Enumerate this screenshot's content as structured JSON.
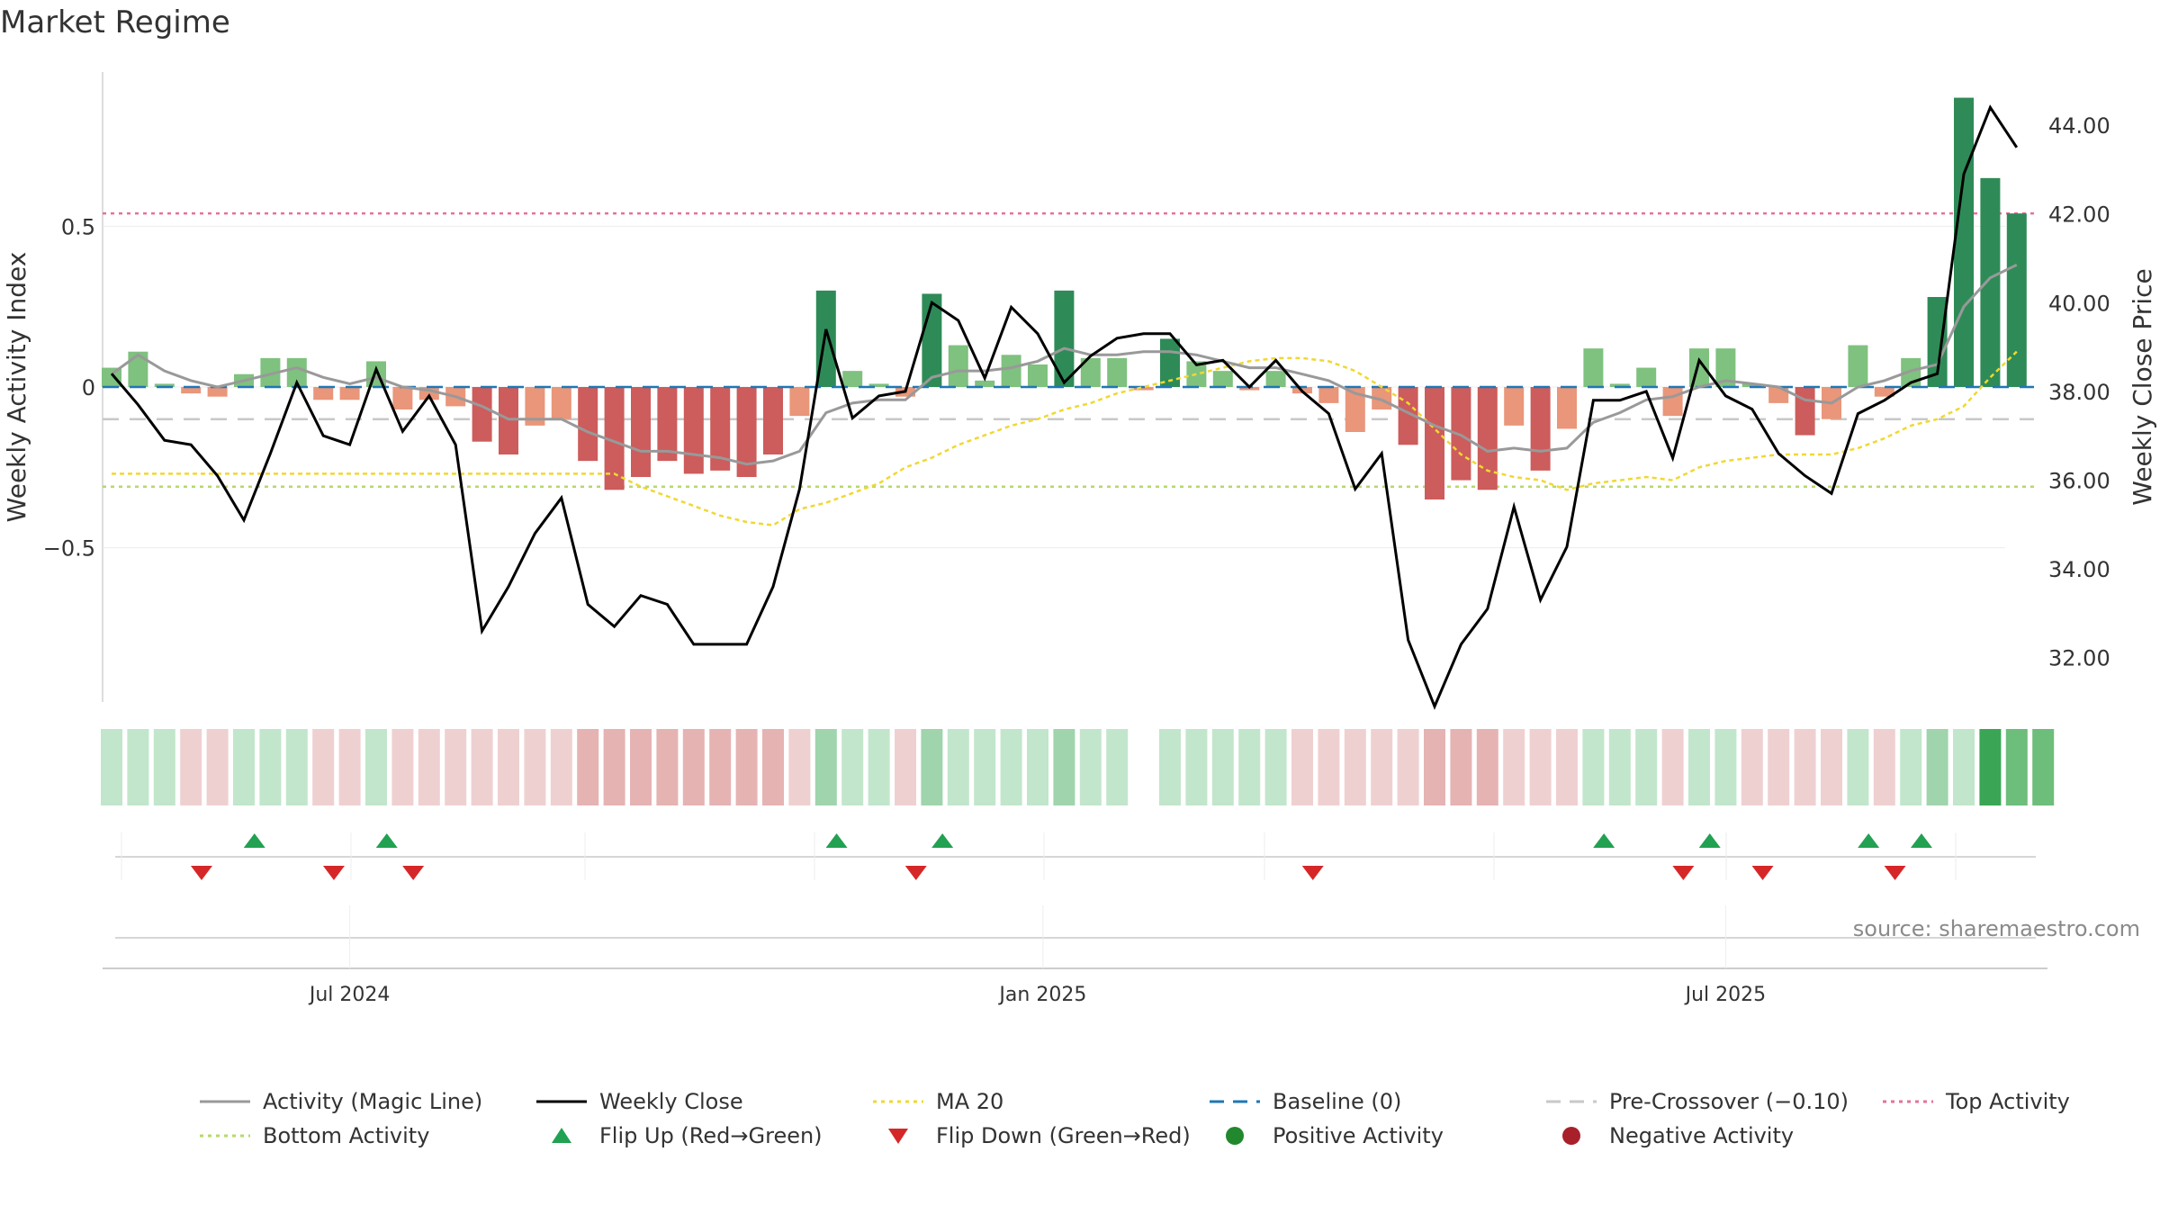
{
  "chart_data": {
    "type": "bar",
    "title": "Market Regime",
    "ylabel_left": "Weekly Activity Index",
    "ylabel_right": "Weekly Close Price",
    "source": "source: sharemaestro.com",
    "left_ylim": [
      -0.98,
      0.98
    ],
    "left_ticks": [
      {
        "v": 0.5,
        "label": "0.5"
      },
      {
        "v": 0,
        "label": "0"
      },
      {
        "v": -0.5,
        "label": "−0.5"
      }
    ],
    "right_ylim": [
      31.0,
      45.2
    ],
    "right_ticks": [
      {
        "v": 44,
        "label": "44.00"
      },
      {
        "v": 42,
        "label": "42.00"
      },
      {
        "v": 40,
        "label": "40.00"
      },
      {
        "v": 38,
        "label": "38.00"
      },
      {
        "v": 36,
        "label": "36.00"
      },
      {
        "v": 34,
        "label": "34.00"
      },
      {
        "v": 32,
        "label": "32.00"
      }
    ],
    "x_ticks": [
      {
        "index": 9,
        "label": "Jul 2024"
      },
      {
        "index": 35.2,
        "label": "Jan 2025"
      },
      {
        "index": 61,
        "label": "Jul 2025"
      }
    ],
    "reference_lines": {
      "baseline": 0,
      "pre_crossover": -0.1,
      "top_activity": 0.54,
      "bottom_activity": -0.31
    },
    "colors": {
      "strong_green": "#2e8b57",
      "light_green": "#7fc17f",
      "strong_red": "#cd5c5c",
      "light_red": "#e9967a",
      "weekly_close": "#000000",
      "magic_line": "#999999",
      "ma20": "#f0d832",
      "baseline": "#1f77b4",
      "pre_crossover": "#c8c8c8",
      "top_activity": "#e8709a",
      "bottom_activity": "#b5d96b",
      "flip_up": "#22a152",
      "flip_down": "#d62728",
      "positive": "#22882e",
      "negative": "#a8202a"
    },
    "series": [
      {
        "name": "Weekly Activity Index",
        "values": [
          0.06,
          0.11,
          0.01,
          -0.02,
          -0.03,
          0.04,
          0.09,
          0.09,
          -0.04,
          -0.04,
          0.08,
          -0.07,
          -0.04,
          -0.06,
          -0.17,
          -0.21,
          -0.12,
          -0.1,
          -0.23,
          -0.32,
          -0.28,
          -0.23,
          -0.27,
          -0.26,
          -0.28,
          -0.21,
          -0.09,
          0.3,
          0.05,
          0.01,
          -0.03,
          0.29,
          0.13,
          0.02,
          0.1,
          0.07,
          0.3,
          0.09,
          0.09,
          -0.01,
          0.15,
          0.08,
          0.05,
          -0.01,
          0.05,
          -0.02,
          -0.05,
          -0.14,
          -0.07,
          -0.18,
          -0.35,
          -0.29,
          -0.32,
          -0.12,
          -0.26,
          -0.13,
          0.12,
          0.01,
          0.06,
          -0.09,
          0.12,
          0.12,
          0.01,
          -0.05,
          -0.15,
          -0.1,
          0.13,
          -0.03,
          0.09,
          0.28,
          0.9,
          0.65,
          0.54
        ]
      },
      {
        "name": "Activity (Magic Line)",
        "values": [
          0.04,
          0.1,
          0.05,
          0.02,
          0.0,
          0.02,
          0.04,
          0.06,
          0.03,
          0.01,
          0.03,
          0.0,
          -0.01,
          -0.03,
          -0.06,
          -0.1,
          -0.1,
          -0.1,
          -0.14,
          -0.17,
          -0.2,
          -0.2,
          -0.21,
          -0.22,
          -0.24,
          -0.23,
          -0.2,
          -0.08,
          -0.05,
          -0.04,
          -0.04,
          0.03,
          0.05,
          0.05,
          0.06,
          0.08,
          0.12,
          0.1,
          0.1,
          0.11,
          0.11,
          0.1,
          0.08,
          0.06,
          0.06,
          0.04,
          0.02,
          -0.02,
          -0.04,
          -0.08,
          -0.12,
          -0.15,
          -0.2,
          -0.19,
          -0.2,
          -0.19,
          -0.11,
          -0.08,
          -0.04,
          -0.03,
          0.0,
          0.02,
          0.01,
          0.0,
          -0.04,
          -0.05,
          0.0,
          0.02,
          0.05,
          0.07,
          0.25,
          0.34,
          0.38
        ]
      },
      {
        "name": "Weekly Close",
        "values": [
          38.4,
          37.7,
          36.9,
          36.8,
          36.1,
          35.1,
          36.6,
          38.2,
          37.0,
          36.8,
          38.5,
          37.1,
          37.9,
          36.8,
          32.6,
          33.6,
          34.8,
          35.6,
          33.2,
          32.7,
          33.4,
          33.2,
          32.3,
          32.3,
          32.3,
          33.6,
          35.8,
          39.4,
          37.4,
          37.9,
          38.0,
          40.0,
          39.6,
          38.3,
          39.9,
          39.3,
          38.2,
          38.8,
          39.2,
          39.3,
          39.3,
          38.6,
          38.7,
          38.1,
          38.7,
          38.0,
          37.5,
          35.8,
          36.6,
          32.4,
          30.9,
          32.3,
          33.1,
          35.4,
          33.3,
          34.5,
          37.8,
          37.8,
          38.0,
          36.5,
          38.7,
          37.9,
          37.6,
          36.6,
          36.1,
          35.7,
          37.5,
          37.8,
          38.2,
          38.4,
          42.9,
          44.4,
          43.5
        ]
      },
      {
        "name": "MA 20",
        "values": [
          -0.27,
          -0.27,
          -0.27,
          -0.27,
          -0.27,
          -0.27,
          -0.27,
          -0.27,
          -0.27,
          -0.27,
          -0.27,
          -0.27,
          -0.27,
          -0.27,
          -0.27,
          -0.27,
          -0.27,
          -0.27,
          -0.27,
          -0.27,
          -0.31,
          -0.34,
          -0.37,
          -0.4,
          -0.42,
          -0.43,
          -0.38,
          -0.36,
          -0.33,
          -0.3,
          -0.25,
          -0.22,
          -0.18,
          -0.15,
          -0.12,
          -0.1,
          -0.07,
          -0.05,
          -0.02,
          0.0,
          0.02,
          0.04,
          0.06,
          0.08,
          0.09,
          0.09,
          0.08,
          0.05,
          0.0,
          -0.05,
          -0.13,
          -0.21,
          -0.26,
          -0.28,
          -0.29,
          -0.32,
          -0.3,
          -0.29,
          -0.28,
          -0.29,
          -0.25,
          -0.23,
          -0.22,
          -0.21,
          -0.21,
          -0.21,
          -0.19,
          -0.16,
          -0.12,
          -0.1,
          -0.06,
          0.03,
          0.11
        ]
      }
    ],
    "regime_strip": [
      {
        "state": "pos",
        "level": 1
      },
      {
        "state": "pos",
        "level": 1
      },
      {
        "state": "pos",
        "level": 1
      },
      {
        "state": "neg",
        "level": 1
      },
      {
        "state": "neg",
        "level": 1
      },
      {
        "state": "pos",
        "level": 1
      },
      {
        "state": "pos",
        "level": 1
      },
      {
        "state": "pos",
        "level": 1
      },
      {
        "state": "neg",
        "level": 1
      },
      {
        "state": "neg",
        "level": 1
      },
      {
        "state": "pos",
        "level": 1
      },
      {
        "state": "neg",
        "level": 1
      },
      {
        "state": "neg",
        "level": 1
      },
      {
        "state": "neg",
        "level": 1
      },
      {
        "state": "neg",
        "level": 1
      },
      {
        "state": "neg",
        "level": 1
      },
      {
        "state": "neg",
        "level": 1
      },
      {
        "state": "neg",
        "level": 1
      },
      {
        "state": "neg",
        "level": 2
      },
      {
        "state": "neg",
        "level": 2
      },
      {
        "state": "neg",
        "level": 2
      },
      {
        "state": "neg",
        "level": 2
      },
      {
        "state": "neg",
        "level": 2
      },
      {
        "state": "neg",
        "level": 2
      },
      {
        "state": "neg",
        "level": 2
      },
      {
        "state": "neg",
        "level": 2
      },
      {
        "state": "neg",
        "level": 1
      },
      {
        "state": "pos",
        "level": 2
      },
      {
        "state": "pos",
        "level": 1
      },
      {
        "state": "pos",
        "level": 1
      },
      {
        "state": "neg",
        "level": 1
      },
      {
        "state": "pos",
        "level": 2
      },
      {
        "state": "pos",
        "level": 1
      },
      {
        "state": "pos",
        "level": 1
      },
      {
        "state": "pos",
        "level": 1
      },
      {
        "state": "pos",
        "level": 1
      },
      {
        "state": "pos",
        "level": 2
      },
      {
        "state": "pos",
        "level": 1
      },
      {
        "state": "pos",
        "level": 1
      },
      {
        "state": "none",
        "level": 0
      },
      {
        "state": "pos",
        "level": 1
      },
      {
        "state": "pos",
        "level": 1
      },
      {
        "state": "pos",
        "level": 1
      },
      {
        "state": "pos",
        "level": 1
      },
      {
        "state": "pos",
        "level": 1
      },
      {
        "state": "neg",
        "level": 1
      },
      {
        "state": "neg",
        "level": 1
      },
      {
        "state": "neg",
        "level": 1
      },
      {
        "state": "neg",
        "level": 1
      },
      {
        "state": "neg",
        "level": 1
      },
      {
        "state": "neg",
        "level": 2
      },
      {
        "state": "neg",
        "level": 2
      },
      {
        "state": "neg",
        "level": 2
      },
      {
        "state": "neg",
        "level": 1
      },
      {
        "state": "neg",
        "level": 1
      },
      {
        "state": "neg",
        "level": 1
      },
      {
        "state": "pos",
        "level": 1
      },
      {
        "state": "pos",
        "level": 1
      },
      {
        "state": "pos",
        "level": 1
      },
      {
        "state": "neg",
        "level": 1
      },
      {
        "state": "pos",
        "level": 1
      },
      {
        "state": "pos",
        "level": 1
      },
      {
        "state": "neg",
        "level": 1
      },
      {
        "state": "neg",
        "level": 1
      },
      {
        "state": "neg",
        "level": 1
      },
      {
        "state": "neg",
        "level": 1
      },
      {
        "state": "pos",
        "level": 1
      },
      {
        "state": "neg",
        "level": 1
      },
      {
        "state": "pos",
        "level": 1
      },
      {
        "state": "pos",
        "level": 2
      },
      {
        "state": "pos",
        "level": 1
      },
      {
        "state": "pos",
        "level": 4
      },
      {
        "state": "pos",
        "level": 3
      },
      {
        "state": "pos",
        "level": 3
      }
    ],
    "flips": [
      {
        "type": "down",
        "index": 3.4
      },
      {
        "type": "up",
        "index": 5.4
      },
      {
        "type": "down",
        "index": 8.4
      },
      {
        "type": "up",
        "index": 10.4
      },
      {
        "type": "down",
        "index": 11.4
      },
      {
        "type": "up",
        "index": 27.4
      },
      {
        "type": "down",
        "index": 30.4
      },
      {
        "type": "up",
        "index": 31.4
      },
      {
        "type": "down",
        "index": 45.4
      },
      {
        "type": "up",
        "index": 56.4
      },
      {
        "type": "down",
        "index": 59.4
      },
      {
        "type": "up",
        "index": 60.4
      },
      {
        "type": "down",
        "index": 62.4
      },
      {
        "type": "up",
        "index": 66.4
      },
      {
        "type": "down",
        "index": 67.4
      },
      {
        "type": "up",
        "index": 68.4
      }
    ],
    "legend": [
      {
        "label": "Activity (Magic Line)",
        "marker": "line",
        "color": "#999999"
      },
      {
        "label": "Weekly Close",
        "marker": "line",
        "color": "#000000"
      },
      {
        "label": "MA 20",
        "marker": "dotted",
        "color": "#f0d832"
      },
      {
        "label": "Baseline (0)",
        "marker": "dashed",
        "color": "#1f77b4"
      },
      {
        "label": "Pre-Crossover (−0.10)",
        "marker": "dashed",
        "color": "#c8c8c8"
      },
      {
        "label": "Top Activity",
        "marker": "dotted",
        "color": "#e8709a"
      },
      {
        "label": "Bottom Activity",
        "marker": "dotted",
        "color": "#b5d96b"
      },
      {
        "label": "Flip Up (Red→Green)",
        "marker": "triangle-up",
        "color": "#22a152"
      },
      {
        "label": "Flip Down (Green→Red)",
        "marker": "triangle-down",
        "color": "#d62728"
      },
      {
        "label": "Positive Activity",
        "marker": "circle",
        "color": "#22882e"
      },
      {
        "label": "Negative Activity",
        "marker": "circle",
        "color": "#a8202a"
      }
    ]
  }
}
